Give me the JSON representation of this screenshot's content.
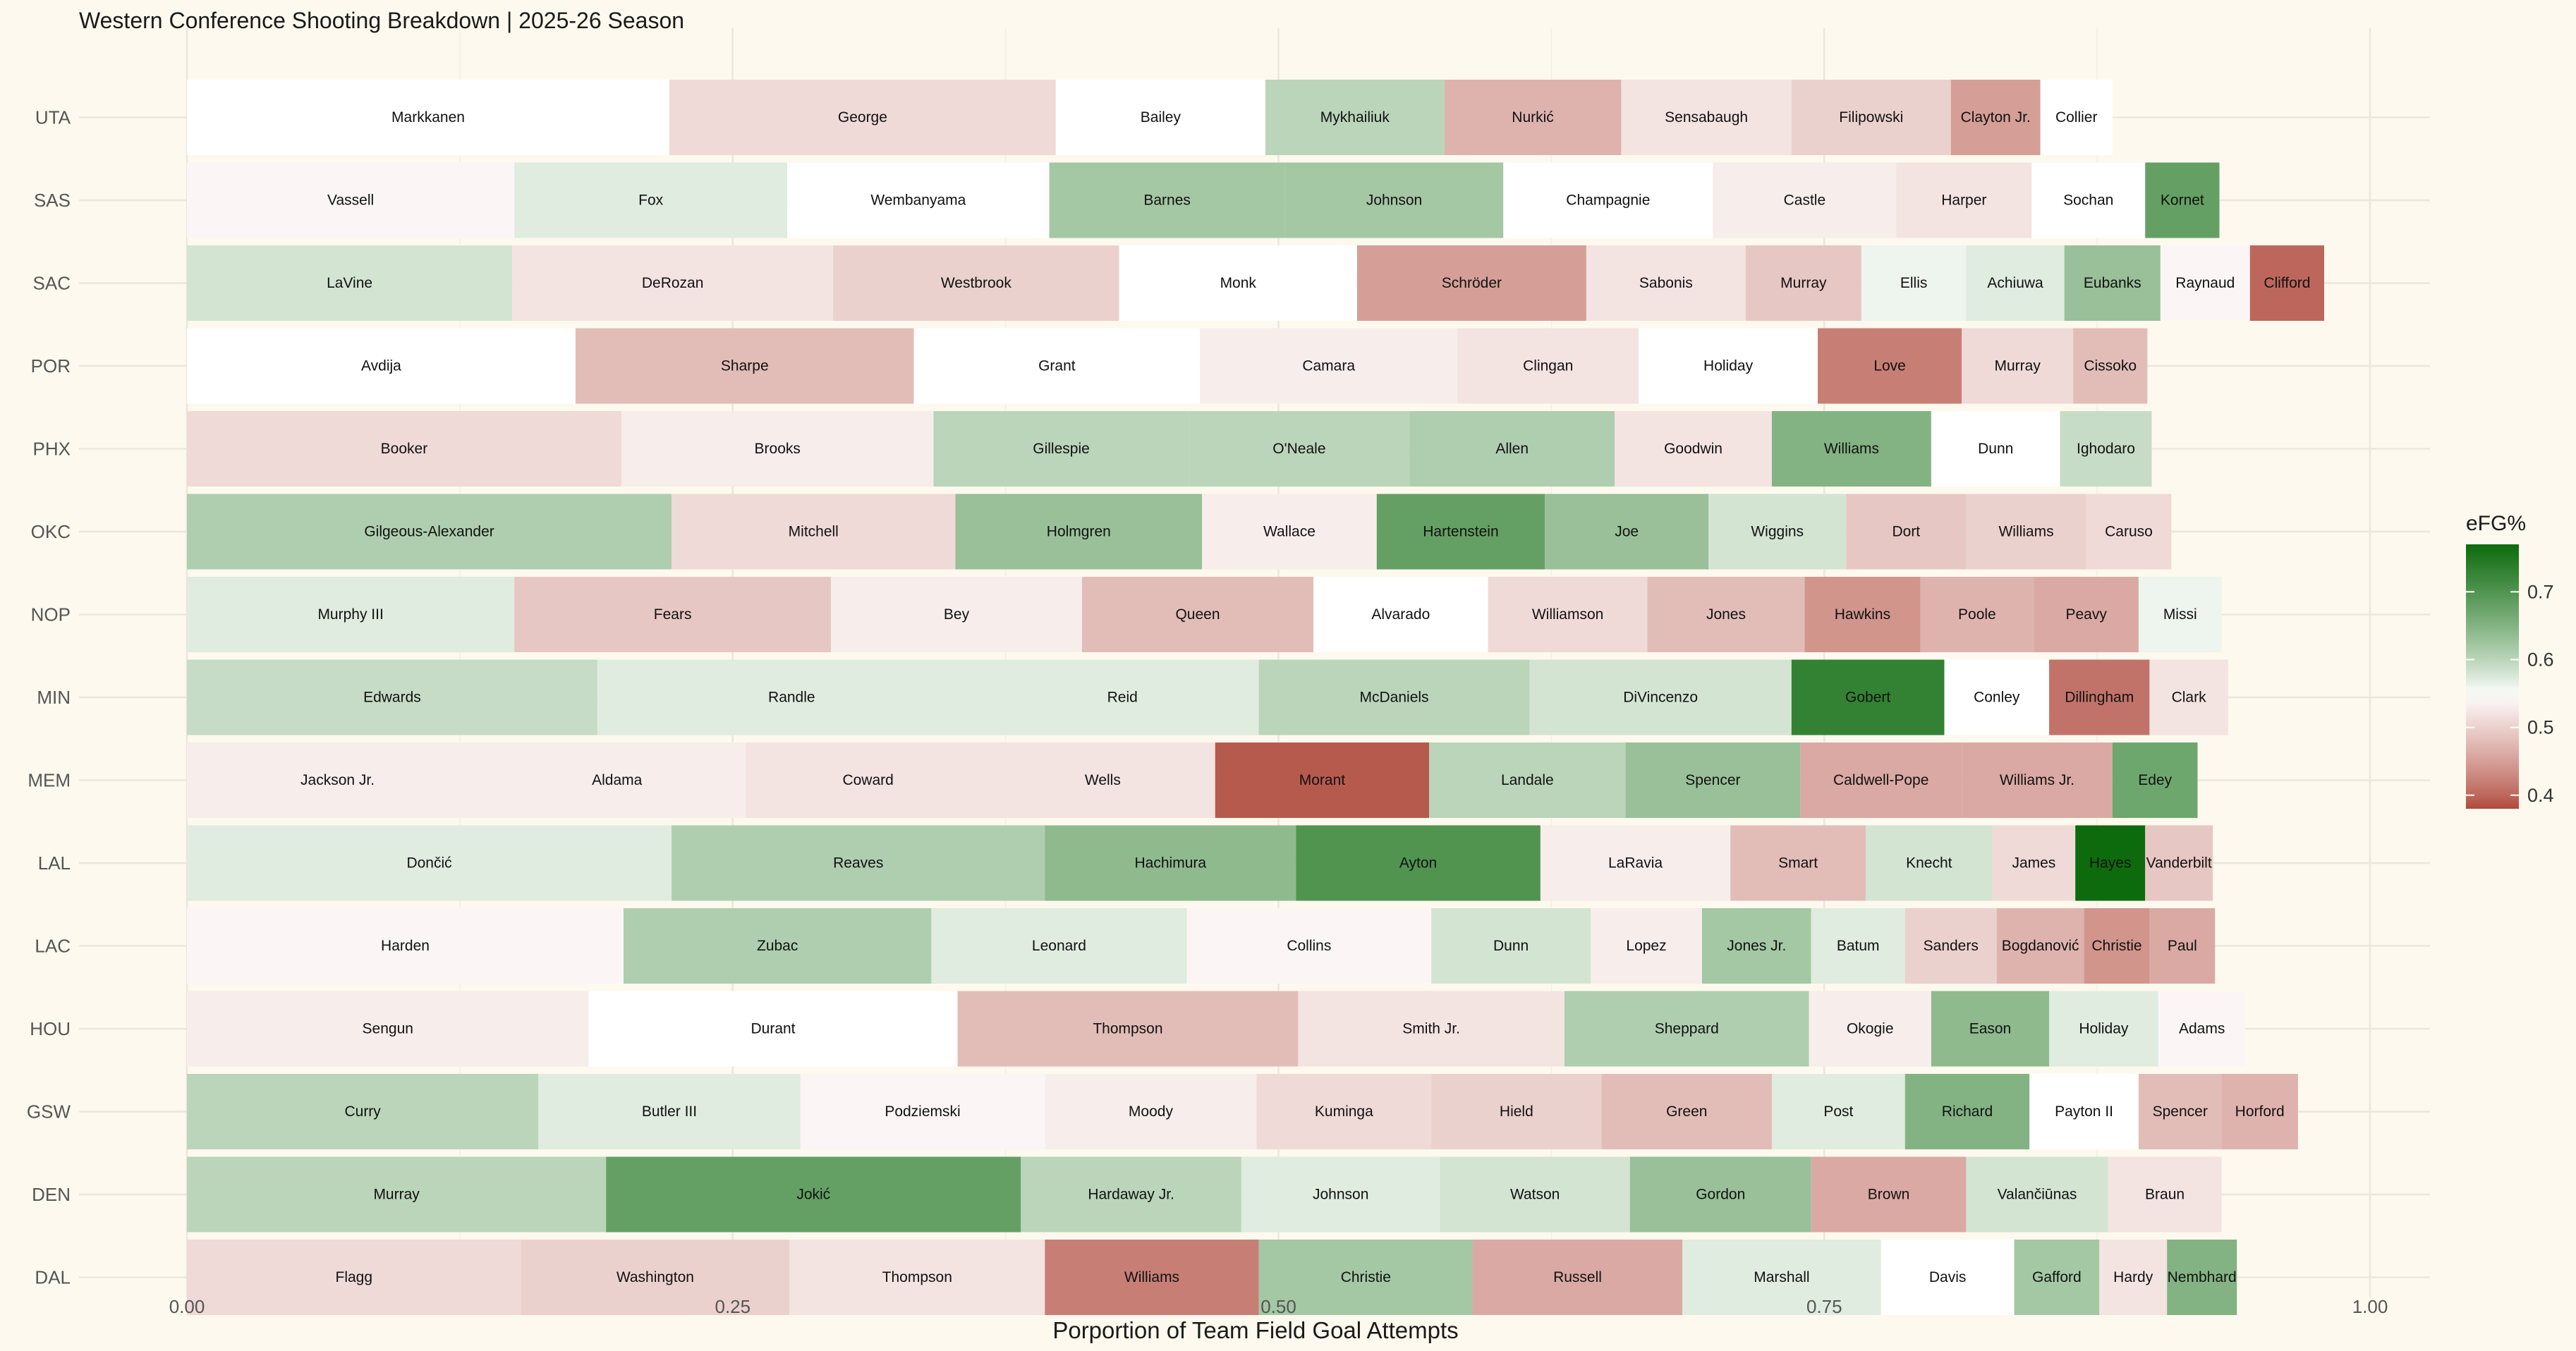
{
  "chart_data": {
    "type": "bar",
    "orientation": "horizontal-stacked",
    "title": "Western Conference Shooting Breakdown | 2025-26 Season",
    "xlabel": "Porportion of Team Field Goal Attempts",
    "ylabel": "",
    "xlim": [
      0,
      1.03
    ],
    "x_ticks": [
      0,
      0.25,
      0.5,
      0.75,
      1
    ],
    "x_tick_labels": [
      "0.00",
      "0.25",
      "0.50",
      "0.75",
      "1.00"
    ],
    "grid": true,
    "legend": {
      "title": "eFG%",
      "placement": "right",
      "range": [
        0.38,
        0.77
      ],
      "ticks": [
        0.4,
        0.5,
        0.6,
        0.7
      ],
      "tick_labels": [
        "0.4",
        "0.5",
        "0.6",
        "0.7"
      ],
      "colors": {
        "low": "#b04a3c",
        "mid": "#ffffff",
        "high": "#0d6b0d"
      },
      "midpoint": 0.55
    },
    "teams": [
      {
        "team": "UTA",
        "players": [
          {
            "name": "Markkanen",
            "share": 0.221,
            "efg": 0.55
          },
          {
            "name": "George",
            "share": 0.177,
            "efg": 0.51
          },
          {
            "name": "Bailey",
            "share": 0.096,
            "efg": 0.55
          },
          {
            "name": "Mykhailiuk",
            "share": 0.082,
            "efg": 0.6
          },
          {
            "name": "Nurkić",
            "share": 0.081,
            "efg": 0.47
          },
          {
            "name": "Sensabaugh",
            "share": 0.078,
            "efg": 0.52
          },
          {
            "name": "Filipowski",
            "share": 0.073,
            "efg": 0.5
          },
          {
            "name": "Clayton Jr.",
            "share": 0.041,
            "efg": 0.45
          },
          {
            "name": "Collier",
            "share": 0.033,
            "efg": 0.55
          }
        ]
      },
      {
        "team": "SAS",
        "players": [
          {
            "name": "Vassell",
            "share": 0.15,
            "efg": 0.54
          },
          {
            "name": "Fox",
            "share": 0.125,
            "efg": 0.57
          },
          {
            "name": "Wembanyama",
            "share": 0.12,
            "efg": 0.55
          },
          {
            "name": "Barnes",
            "share": 0.108,
            "efg": 0.62
          },
          {
            "name": "Johnson",
            "share": 0.1,
            "efg": 0.62
          },
          {
            "name": "Champagnie",
            "share": 0.096,
            "efg": 0.55
          },
          {
            "name": "Castle",
            "share": 0.084,
            "efg": 0.53
          },
          {
            "name": "Harper",
            "share": 0.062,
            "efg": 0.52
          },
          {
            "name": "Sochan",
            "share": 0.052,
            "efg": 0.55
          },
          {
            "name": "Kornet",
            "share": 0.034,
            "efg": 0.68
          }
        ]
      },
      {
        "team": "SAC",
        "players": [
          {
            "name": "LaVine",
            "share": 0.149,
            "efg": 0.58
          },
          {
            "name": "DeRozan",
            "share": 0.147,
            "efg": 0.52
          },
          {
            "name": "Westbrook",
            "share": 0.131,
            "efg": 0.5
          },
          {
            "name": "Monk",
            "share": 0.109,
            "efg": 0.55
          },
          {
            "name": "Schröder",
            "share": 0.105,
            "efg": 0.45
          },
          {
            "name": "Sabonis",
            "share": 0.073,
            "efg": 0.52
          },
          {
            "name": "Murray",
            "share": 0.053,
            "efg": 0.49
          },
          {
            "name": "Ellis",
            "share": 0.048,
            "efg": 0.56
          },
          {
            "name": "Achiuwa",
            "share": 0.045,
            "efg": 0.57
          },
          {
            "name": "Eubanks",
            "share": 0.044,
            "efg": 0.63
          },
          {
            "name": "Raynaud",
            "share": 0.041,
            "efg": 0.54
          },
          {
            "name": "Clifford",
            "share": 0.034,
            "efg": 0.4
          }
        ]
      },
      {
        "team": "POR",
        "players": [
          {
            "name": "Avdija",
            "share": 0.178,
            "efg": 0.55
          },
          {
            "name": "Sharpe",
            "share": 0.155,
            "efg": 0.48
          },
          {
            "name": "Grant",
            "share": 0.131,
            "efg": 0.55
          },
          {
            "name": "Camara",
            "share": 0.118,
            "efg": 0.53
          },
          {
            "name": "Clingan",
            "share": 0.083,
            "efg": 0.52
          },
          {
            "name": "Holiday",
            "share": 0.082,
            "efg": 0.55
          },
          {
            "name": "Love",
            "share": 0.066,
            "efg": 0.42
          },
          {
            "name": "Murray",
            "share": 0.051,
            "efg": 0.51
          },
          {
            "name": "Cissoko",
            "share": 0.034,
            "efg": 0.48
          }
        ]
      },
      {
        "team": "PHX",
        "players": [
          {
            "name": "Booker",
            "share": 0.199,
            "efg": 0.51
          },
          {
            "name": "Brooks",
            "share": 0.143,
            "efg": 0.53
          },
          {
            "name": "Gillespie",
            "share": 0.117,
            "efg": 0.6
          },
          {
            "name": "O'Neale",
            "share": 0.101,
            "efg": 0.6
          },
          {
            "name": "Allen",
            "share": 0.094,
            "efg": 0.61
          },
          {
            "name": "Goodwin",
            "share": 0.072,
            "efg": 0.52
          },
          {
            "name": "Williams",
            "share": 0.073,
            "efg": 0.65
          },
          {
            "name": "Dunn",
            "share": 0.059,
            "efg": 0.55
          },
          {
            "name": "Ighodaro",
            "share": 0.042,
            "efg": 0.59
          }
        ]
      },
      {
        "team": "OKC",
        "players": [
          {
            "name": "Gilgeous-Alexander",
            "share": 0.222,
            "efg": 0.61
          },
          {
            "name": "Mitchell",
            "share": 0.13,
            "efg": 0.51
          },
          {
            "name": "Holmgren",
            "share": 0.113,
            "efg": 0.63
          },
          {
            "name": "Wallace",
            "share": 0.08,
            "efg": 0.53
          },
          {
            "name": "Hartenstein",
            "share": 0.077,
            "efg": 0.68
          },
          {
            "name": "Joe",
            "share": 0.075,
            "efg": 0.63
          },
          {
            "name": "Wiggins",
            "share": 0.063,
            "efg": 0.58
          },
          {
            "name": "Dort",
            "share": 0.055,
            "efg": 0.49
          },
          {
            "name": "Williams",
            "share": 0.055,
            "efg": 0.5
          },
          {
            "name": "Caruso",
            "share": 0.039,
            "efg": 0.51
          }
        ]
      },
      {
        "team": "NOP",
        "players": [
          {
            "name": "Murphy III",
            "share": 0.15,
            "efg": 0.57
          },
          {
            "name": "Fears",
            "share": 0.145,
            "efg": 0.49
          },
          {
            "name": "Bey",
            "share": 0.115,
            "efg": 0.53
          },
          {
            "name": "Queen",
            "share": 0.106,
            "efg": 0.48
          },
          {
            "name": "Alvarado",
            "share": 0.08,
            "efg": 0.55
          },
          {
            "name": "Williamson",
            "share": 0.073,
            "efg": 0.51
          },
          {
            "name": "Jones",
            "share": 0.072,
            "efg": 0.48
          },
          {
            "name": "Hawkins",
            "share": 0.053,
            "efg": 0.44
          },
          {
            "name": "Poole",
            "share": 0.052,
            "efg": 0.47
          },
          {
            "name": "Peavy",
            "share": 0.048,
            "efg": 0.46
          },
          {
            "name": "Missi",
            "share": 0.038,
            "efg": 0.56
          }
        ]
      },
      {
        "team": "MIN",
        "players": [
          {
            "name": "Edwards",
            "share": 0.188,
            "efg": 0.59
          },
          {
            "name": "Randle",
            "share": 0.178,
            "efg": 0.57
          },
          {
            "name": "Reid",
            "share": 0.125,
            "efg": 0.57
          },
          {
            "name": "McDaniels",
            "share": 0.124,
            "efg": 0.6
          },
          {
            "name": "DiVincenzo",
            "share": 0.12,
            "efg": 0.58
          },
          {
            "name": "Gobert",
            "share": 0.07,
            "efg": 0.73
          },
          {
            "name": "Conley",
            "share": 0.048,
            "efg": 0.55
          },
          {
            "name": "Dillingham",
            "share": 0.046,
            "efg": 0.41
          },
          {
            "name": "Clark",
            "share": 0.036,
            "efg": 0.52
          }
        ]
      },
      {
        "team": "MEM",
        "players": [
          {
            "name": "Jackson Jr.",
            "share": 0.138,
            "efg": 0.53
          },
          {
            "name": "Aldama",
            "share": 0.118,
            "efg": 0.53
          },
          {
            "name": "Coward",
            "share": 0.112,
            "efg": 0.52
          },
          {
            "name": "Wells",
            "share": 0.103,
            "efg": 0.52
          },
          {
            "name": "Morant",
            "share": 0.098,
            "efg": 0.39
          },
          {
            "name": "Landale",
            "share": 0.09,
            "efg": 0.6
          },
          {
            "name": "Spencer",
            "share": 0.08,
            "efg": 0.63
          },
          {
            "name": "Caldwell-Pope",
            "share": 0.074,
            "efg": 0.46
          },
          {
            "name": "Williams Jr.",
            "share": 0.069,
            "efg": 0.46
          },
          {
            "name": "Edey",
            "share": 0.039,
            "efg": 0.67
          }
        ]
      },
      {
        "team": "LAL",
        "players": [
          {
            "name": "Dončić",
            "share": 0.222,
            "efg": 0.57
          },
          {
            "name": "Reaves",
            "share": 0.171,
            "efg": 0.61
          },
          {
            "name": "Hachimura",
            "share": 0.115,
            "efg": 0.64
          },
          {
            "name": "Ayton",
            "share": 0.112,
            "efg": 0.7
          },
          {
            "name": "LaRavia",
            "share": 0.087,
            "efg": 0.53
          },
          {
            "name": "Smart",
            "share": 0.062,
            "efg": 0.48
          },
          {
            "name": "Knecht",
            "share": 0.058,
            "efg": 0.58
          },
          {
            "name": "James",
            "share": 0.038,
            "efg": 0.51
          },
          {
            "name": "Hayes",
            "share": 0.032,
            "efg": 0.77
          },
          {
            "name": "Vanderbilt",
            "share": 0.031,
            "efg": 0.49
          }
        ]
      },
      {
        "team": "LAC",
        "players": [
          {
            "name": "Harden",
            "share": 0.2,
            "efg": 0.54
          },
          {
            "name": "Zubac",
            "share": 0.141,
            "efg": 0.61
          },
          {
            "name": "Leonard",
            "share": 0.117,
            "efg": 0.57
          },
          {
            "name": "Collins",
            "share": 0.112,
            "efg": 0.54
          },
          {
            "name": "Dunn",
            "share": 0.073,
            "efg": 0.58
          },
          {
            "name": "Lopez",
            "share": 0.051,
            "efg": 0.53
          },
          {
            "name": "Jones Jr.",
            "share": 0.05,
            "efg": 0.62
          },
          {
            "name": "Batum",
            "share": 0.043,
            "efg": 0.57
          },
          {
            "name": "Sanders",
            "share": 0.042,
            "efg": 0.5
          },
          {
            "name": "Bogdanović",
            "share": 0.04,
            "efg": 0.47
          },
          {
            "name": "Christie",
            "share": 0.03,
            "efg": 0.44
          },
          {
            "name": "Paul",
            "share": 0.03,
            "efg": 0.46
          }
        ]
      },
      {
        "team": "HOU",
        "players": [
          {
            "name": "Sengun",
            "share": 0.184,
            "efg": 0.53
          },
          {
            "name": "Durant",
            "share": 0.169,
            "efg": 0.55
          },
          {
            "name": "Thompson",
            "share": 0.156,
            "efg": 0.48
          },
          {
            "name": "Smith Jr.",
            "share": 0.122,
            "efg": 0.52
          },
          {
            "name": "Sheppard",
            "share": 0.112,
            "efg": 0.61
          },
          {
            "name": "Okogie",
            "share": 0.056,
            "efg": 0.53
          },
          {
            "name": "Eason",
            "share": 0.054,
            "efg": 0.64
          },
          {
            "name": "Holiday",
            "share": 0.05,
            "efg": 0.57
          },
          {
            "name": "Adams",
            "share": 0.04,
            "efg": 0.54
          }
        ]
      },
      {
        "team": "GSW",
        "players": [
          {
            "name": "Curry",
            "share": 0.161,
            "efg": 0.6
          },
          {
            "name": "Butler III",
            "share": 0.12,
            "efg": 0.57
          },
          {
            "name": "Podziemski",
            "share": 0.112,
            "efg": 0.54
          },
          {
            "name": "Moody",
            "share": 0.097,
            "efg": 0.53
          },
          {
            "name": "Kuminga",
            "share": 0.08,
            "efg": 0.51
          },
          {
            "name": "Hield",
            "share": 0.078,
            "efg": 0.5
          },
          {
            "name": "Green",
            "share": 0.078,
            "efg": 0.48
          },
          {
            "name": "Post",
            "share": 0.061,
            "efg": 0.57
          },
          {
            "name": "Richard",
            "share": 0.057,
            "efg": 0.65
          },
          {
            "name": "Payton II",
            "share": 0.05,
            "efg": 0.55
          },
          {
            "name": "Spencer",
            "share": 0.038,
            "efg": 0.48
          },
          {
            "name": "Horford",
            "share": 0.035,
            "efg": 0.47
          }
        ]
      },
      {
        "team": "DEN",
        "players": [
          {
            "name": "Murray",
            "share": 0.192,
            "efg": 0.6
          },
          {
            "name": "Jokić",
            "share": 0.19,
            "efg": 0.68
          },
          {
            "name": "Hardaway Jr.",
            "share": 0.101,
            "efg": 0.6
          },
          {
            "name": "Johnson",
            "share": 0.091,
            "efg": 0.57
          },
          {
            "name": "Watson",
            "share": 0.087,
            "efg": 0.58
          },
          {
            "name": "Gordon",
            "share": 0.083,
            "efg": 0.63
          },
          {
            "name": "Brown",
            "share": 0.071,
            "efg": 0.46
          },
          {
            "name": "Valančiūnas",
            "share": 0.065,
            "efg": 0.58
          },
          {
            "name": "Braun",
            "share": 0.052,
            "efg": 0.52
          }
        ]
      },
      {
        "team": "DAL",
        "players": [
          {
            "name": "Flagg",
            "share": 0.153,
            "efg": 0.51
          },
          {
            "name": "Washington",
            "share": 0.123,
            "efg": 0.5
          },
          {
            "name": "Thompson",
            "share": 0.117,
            "efg": 0.52
          },
          {
            "name": "Williams",
            "share": 0.098,
            "efg": 0.42
          },
          {
            "name": "Christie",
            "share": 0.098,
            "efg": 0.62
          },
          {
            "name": "Russell",
            "share": 0.096,
            "efg": 0.46
          },
          {
            "name": "Marshall",
            "share": 0.091,
            "efg": 0.57
          },
          {
            "name": "Davis",
            "share": 0.061,
            "efg": 0.55
          },
          {
            "name": "Gafford",
            "share": 0.039,
            "efg": 0.62
          },
          {
            "name": "Hardy",
            "share": 0.031,
            "efg": 0.52
          },
          {
            "name": "Nembhard",
            "share": 0.032,
            "efg": 0.65
          }
        ]
      }
    ]
  }
}
